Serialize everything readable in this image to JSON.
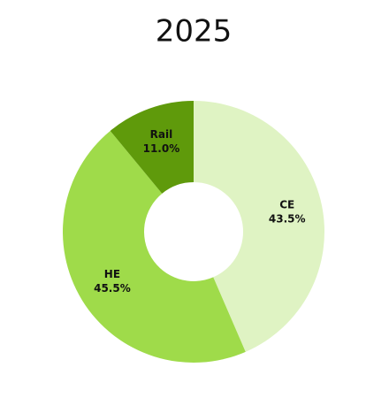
{
  "chart_data": {
    "type": "donut",
    "title": "2025",
    "categories": [
      "CE",
      "HE",
      "Rail"
    ],
    "values": [
      43.5,
      45.5,
      11.0
    ],
    "value_labels": [
      "43.5%",
      "45.5%",
      "11.0%"
    ],
    "colors": [
      "#dff3c3",
      "#9fdb4a",
      "#5f9a0b"
    ]
  }
}
